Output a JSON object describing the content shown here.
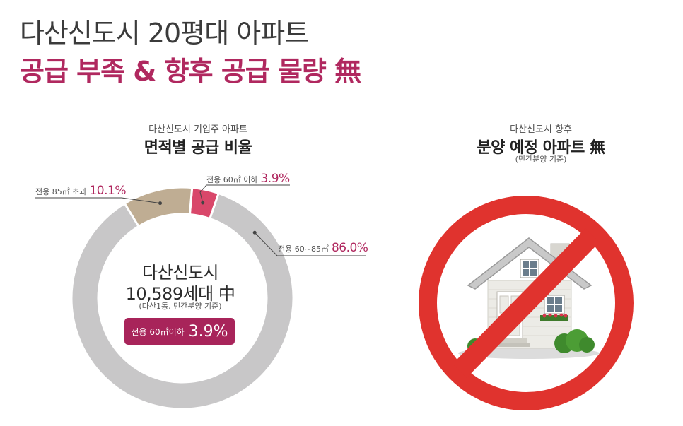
{
  "header": {
    "title": "다산신도시 20평대 아파트",
    "subtitle": "공급 부족 & 향후 공급 물량 無"
  },
  "left": {
    "caption_small": "다산신도시 기입주 아파트",
    "caption_big": "면적별 공급 비율",
    "center_line1": "다산신도시",
    "center_line2": "10,589세대 中",
    "center_note": "(다산1동, 민간분양 기준)",
    "badge_label": "전용 60㎡이하",
    "badge_value": "3.9%"
  },
  "right": {
    "caption_small": "다산신도시 향후",
    "caption_big": "분양 예정 아파트 無",
    "caption_note": "(민간분양 기준)"
  },
  "chart_data": {
    "type": "pie",
    "variant": "donut",
    "title": "면적별 공급 비율",
    "slices": [
      {
        "label": "전용 60㎡ 이하",
        "value": 3.9,
        "value_label": "3.9%",
        "color": "#d9476a"
      },
      {
        "label": "전용 60~85㎡",
        "value": 86.0,
        "value_label": "86.0%",
        "color": "#c8c7c8"
      },
      {
        "label": "전용 85㎡ 초과",
        "value": 10.1,
        "value_label": "10.1%",
        "color": "#bfad93"
      }
    ]
  },
  "colors": {
    "accent": "#b0285f",
    "no_sign": "#e0332e"
  },
  "icons": {
    "no_sign": "prohibition-sign-icon",
    "house": "house-icon"
  }
}
